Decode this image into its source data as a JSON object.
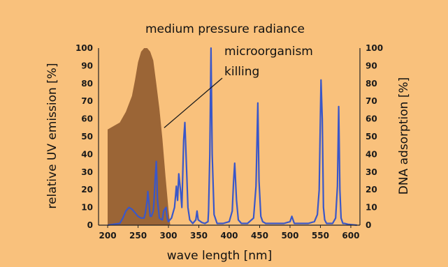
{
  "chart_data": {
    "type": "line",
    "title": "medium pressure radiance",
    "xlabel": "wave length [nm]",
    "ylabel_left": "relative UV emission [%]",
    "ylabel_right": "DNA adsorption [%]",
    "annotation": {
      "line1": "microorganism",
      "line2": "killing",
      "points_to": [
        293,
        55
      ]
    },
    "xlim": [
      185,
      615
    ],
    "ylim": [
      0,
      100
    ],
    "x_ticks": [
      "200",
      "250",
      "300",
      "350",
      "400",
      "450",
      "500",
      "550",
      "600"
    ],
    "x_tick_values": [
      200,
      250,
      300,
      350,
      400,
      450,
      500,
      550,
      600
    ],
    "y_ticks_left": [
      "0",
      "10",
      "20",
      "30",
      "40",
      "50",
      "60",
      "70",
      "80",
      "90",
      "100"
    ],
    "y_ticks_right": [
      "0",
      "10",
      "20",
      "30",
      "40",
      "50",
      "60",
      "70",
      "80",
      "90",
      "100"
    ],
    "y_tick_values": [
      0,
      10,
      20,
      30,
      40,
      50,
      60,
      70,
      80,
      90,
      100
    ],
    "grid": false,
    "series": [
      {
        "kind": "area",
        "color": "#9b6536",
        "x": [
          200,
          200,
          210,
          220,
          230,
          240,
          245,
          250,
          255,
          260,
          265,
          270,
          275,
          280,
          285,
          290,
          295,
          300,
          303
        ],
        "y": [
          0,
          54,
          56,
          58,
          64,
          73,
          82,
          92,
          98,
          100,
          100,
          98,
          93,
          80,
          66,
          49,
          28,
          9,
          0
        ]
      },
      {
        "kind": "line",
        "color": "#3a57c8",
        "x": [
          200,
          210,
          220,
          225,
          230,
          235,
          240,
          245,
          250,
          255,
          260,
          262,
          265,
          266,
          268,
          270,
          272,
          275,
          276,
          278,
          280,
          282,
          285,
          290,
          292,
          296,
          298,
          300,
          305,
          310,
          312,
          313,
          315,
          317,
          320,
          322,
          325,
          327,
          330,
          332,
          335,
          340,
          345,
          347,
          349,
          355,
          360,
          365,
          366,
          368,
          370,
          372,
          375,
          380,
          390,
          400,
          405,
          407,
          409,
          412,
          415,
          420,
          430,
          440,
          444,
          447,
          449,
          452,
          455,
          460,
          470,
          480,
          490,
          500,
          503,
          505,
          507,
          510,
          520,
          530,
          540,
          545,
          548,
          551,
          553,
          555,
          557,
          560,
          563,
          570,
          575,
          578,
          580,
          582,
          584,
          587,
          590,
          595,
          610
        ],
        "y": [
          0,
          0.5,
          1,
          4,
          8,
          10,
          9,
          7,
          5,
          4,
          4,
          7,
          14,
          19,
          12,
          5,
          5,
          8,
          12,
          25,
          36,
          14,
          4,
          3,
          8,
          10,
          4,
          2,
          4,
          10,
          18,
          22,
          14,
          29,
          19,
          10,
          48,
          58,
          30,
          10,
          3,
          1,
          3,
          8,
          3,
          1.5,
          1,
          2,
          8,
          40,
          100,
          40,
          6,
          1,
          1,
          2,
          8,
          24,
          35,
          14,
          3,
          1,
          1,
          4,
          22,
          69,
          25,
          5,
          2,
          1,
          1,
          1,
          1,
          2,
          5,
          3,
          1,
          1,
          1,
          1,
          2,
          6,
          20,
          82,
          60,
          10,
          3,
          1,
          1,
          1,
          4,
          22,
          67,
          20,
          4,
          1,
          1,
          0.5,
          0
        ]
      }
    ]
  },
  "colors": {
    "background": "#f9c17c",
    "axis": "#222222",
    "annotation_line": "#1a1a1a"
  }
}
